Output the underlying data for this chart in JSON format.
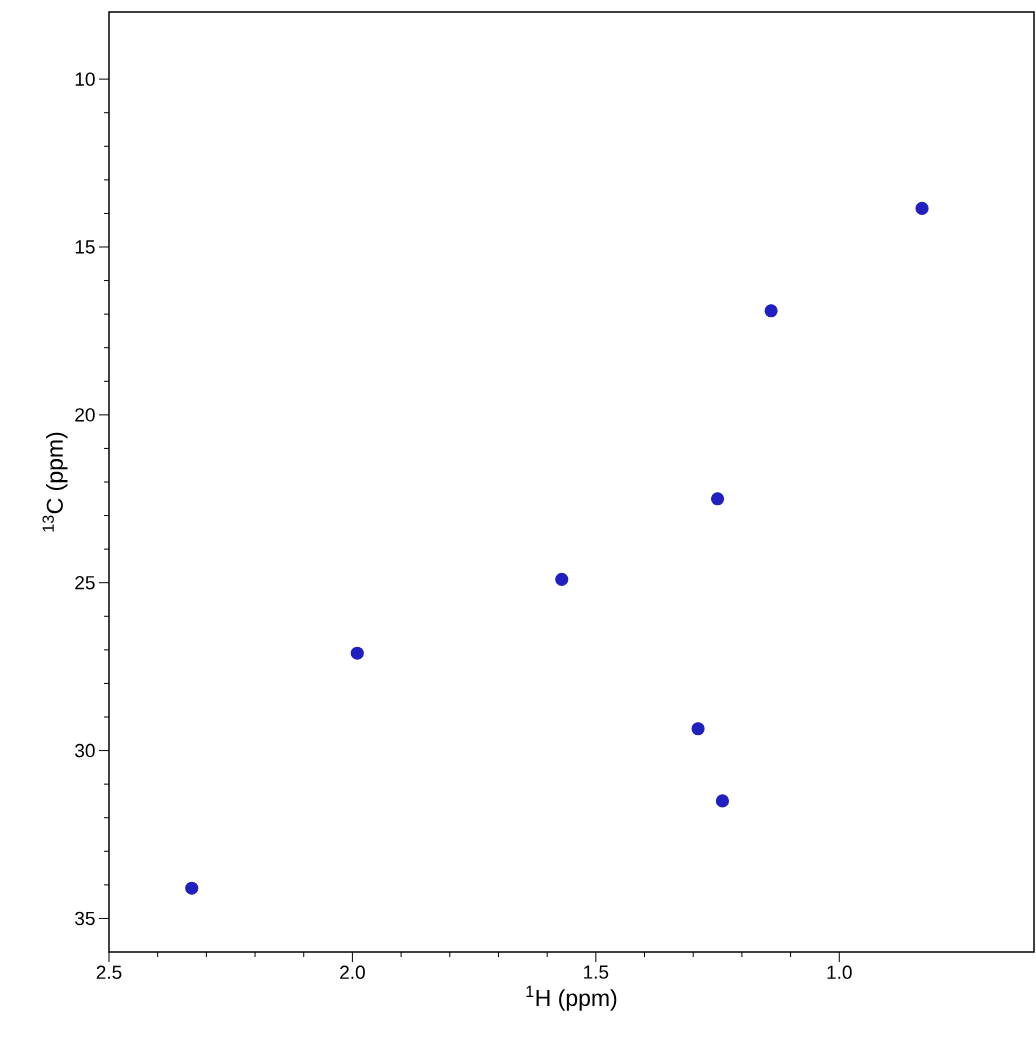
{
  "chart_data": {
    "type": "scatter",
    "xlabel": "$^{1}$H (ppm)",
    "ylabel": "$^{13}$C (ppm)",
    "x": [
      0.83,
      1.14,
      1.25,
      1.57,
      1.99,
      1.29,
      1.24,
      2.33
    ],
    "series": [
      {
        "color": "#2020c0",
        "values": [
          13.85,
          16.9,
          22.5,
          24.9,
          27.1,
          29.35,
          31.5,
          34.1
        ]
      }
    ],
    "marker": "circle",
    "xlim": [
      2.5,
      0.6
    ],
    "ylim": [
      36,
      8
    ],
    "xticks": [
      {
        "value": 2.5,
        "label": "2.5"
      },
      {
        "value": 2.0,
        "label": "2.0"
      },
      {
        "value": 1.5,
        "label": "1.5"
      },
      {
        "value": 1.0,
        "label": "1.0"
      }
    ],
    "yticks": [
      10,
      15,
      20,
      25,
      30,
      35
    ]
  }
}
